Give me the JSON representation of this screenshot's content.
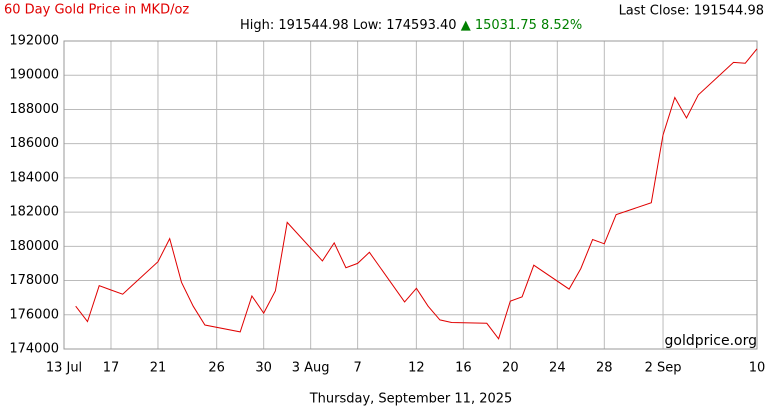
{
  "chart_data": {
    "type": "line",
    "title": "60 Day Gold Price in MKD/oz",
    "last_close": "Last Close: 191544.98",
    "high": "High: 191544.98",
    "low": "Low: 174593.40",
    "change": "▲ 15031.75 8.52%",
    "watermark": "goldprice.org",
    "footer": "Thursday, September 11, 2025",
    "color": "#e00000",
    "change_color": "#008000",
    "grid": true,
    "x": [
      "14 Jul",
      "15 Jul",
      "16 Jul",
      "17 Jul",
      "18 Jul",
      "21 Jul",
      "22 Jul",
      "23 Jul",
      "24 Jul",
      "25 Jul",
      "28 Jul",
      "29 Jul",
      "30 Jul",
      "31 Jul",
      "1 Aug",
      "4 Aug",
      "5 Aug",
      "6 Aug",
      "7 Aug",
      "8 Aug",
      "11 Aug",
      "12 Aug",
      "13 Aug",
      "14 Aug",
      "15 Aug",
      "18 Aug",
      "19 Aug",
      "20 Aug",
      "21 Aug",
      "22 Aug",
      "25 Aug",
      "26 Aug",
      "27 Aug",
      "28 Aug",
      "29 Aug",
      "1 Sep",
      "2 Sep",
      "3 Sep",
      "4 Sep",
      "5 Sep",
      "8 Sep",
      "9 Sep",
      "10 Sep"
    ],
    "values": [
      176500,
      175600,
      177700,
      177450,
      177200,
      179100,
      180450,
      177900,
      176500,
      175400,
      175000,
      177100,
      176100,
      177400,
      181400,
      179150,
      180200,
      178750,
      179000,
      179650,
      176750,
      177550,
      176500,
      175700,
      175550,
      175500,
      174593.4,
      176800,
      177050,
      178900,
      177500,
      178700,
      180400,
      180150,
      181850,
      182550,
      186500,
      188700,
      187500,
      188850,
      190750,
      190700,
      191544.98
    ],
    "xlim": [
      "13 Jul",
      "10 Sep"
    ],
    "xticks": [
      {
        "value": "13 Jul",
        "label": "13 Jul"
      },
      {
        "value": "17 Jul",
        "label": "17"
      },
      {
        "value": "21 Jul",
        "label": "21"
      },
      {
        "value": "26 Jul",
        "label": "26"
      },
      {
        "value": "30 Jul",
        "label": "30"
      },
      {
        "value": "3 Aug",
        "label": "3 Aug"
      },
      {
        "value": "7 Aug",
        "label": "7"
      },
      {
        "value": "12 Aug",
        "label": "12"
      },
      {
        "value": "16 Aug",
        "label": "16"
      },
      {
        "value": "20 Aug",
        "label": "20"
      },
      {
        "value": "24 Aug",
        "label": "24"
      },
      {
        "value": "28 Aug",
        "label": "28"
      },
      {
        "value": "2 Sep",
        "label": "2 Sep"
      },
      {
        "value": "10 Sep",
        "label": "10"
      }
    ],
    "ylim": [
      174000,
      192000
    ],
    "yticks": [
      174000,
      176000,
      178000,
      180000,
      182000,
      184000,
      186000,
      188000,
      190000,
      192000
    ]
  }
}
